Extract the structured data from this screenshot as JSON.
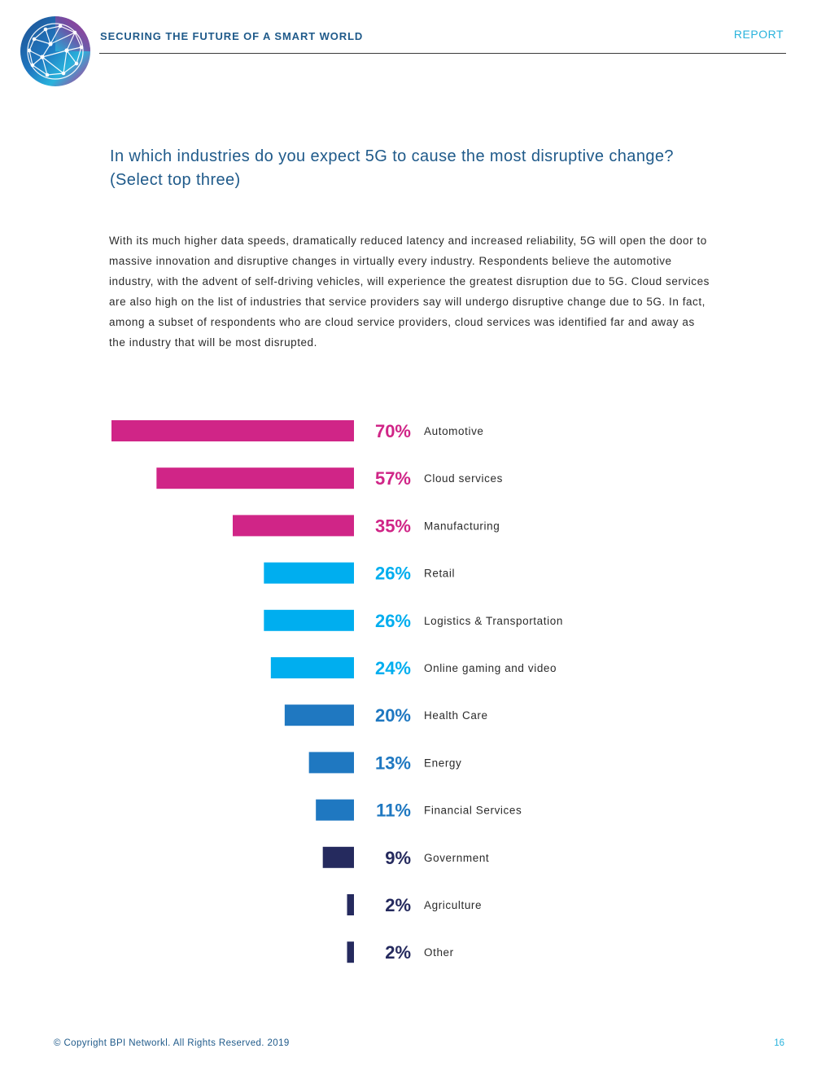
{
  "header": {
    "title": "SECURING THE FUTURE OF A SMART WORLD",
    "tag": "REPORT"
  },
  "question": "In which industries do you expect 5G to cause the most disruptive change? (Select top three)",
  "body_text": "With its much higher data speeds, dramatically reduced latency and increased reliability, 5G will open the door to massive innovation and disruptive changes in virtually every industry. Respondents believe the automotive industry, with the advent of self-driving vehicles, will experience the greatest disruption due to 5G. Cloud services are also high on the list of industries that service providers say will undergo disruptive change due to 5G. In fact, among a subset of respondents who are cloud service providers, cloud services was identified far and away as the industry that will be most disrupted.",
  "footer": {
    "copyright": "© Copyright BPI Networkl. All Rights Reserved. 2019",
    "page": "16"
  },
  "colors": {
    "magenta": "#d02587",
    "cyan": "#00aeef",
    "blue": "#1f78c1",
    "navy": "#252a5e"
  },
  "chart_data": {
    "type": "bar",
    "orientation": "horizontal",
    "title": "In which industries do you expect 5G to cause the most disruptive change? (Select top three)",
    "categories": [
      "Automotive",
      "Cloud services",
      "Manufacturing",
      "Retail",
      "Logistics & Transportation",
      "Online gaming and video",
      "Health Care",
      "Energy",
      "Financial Services",
      "Government",
      "Agriculture",
      "Other"
    ],
    "values": [
      70,
      57,
      35,
      26,
      26,
      24,
      20,
      13,
      11,
      9,
      2,
      2
    ],
    "labels": [
      "70%",
      "57%",
      "35%",
      "26%",
      "26%",
      "24%",
      "20%",
      "13%",
      "11%",
      "9%",
      "2%",
      "2%"
    ],
    "color_groups": [
      "magenta",
      "magenta",
      "magenta",
      "cyan",
      "cyan",
      "cyan",
      "blue",
      "blue",
      "blue",
      "navy",
      "navy",
      "navy"
    ],
    "unit": "%",
    "xlim": [
      0,
      70
    ]
  }
}
